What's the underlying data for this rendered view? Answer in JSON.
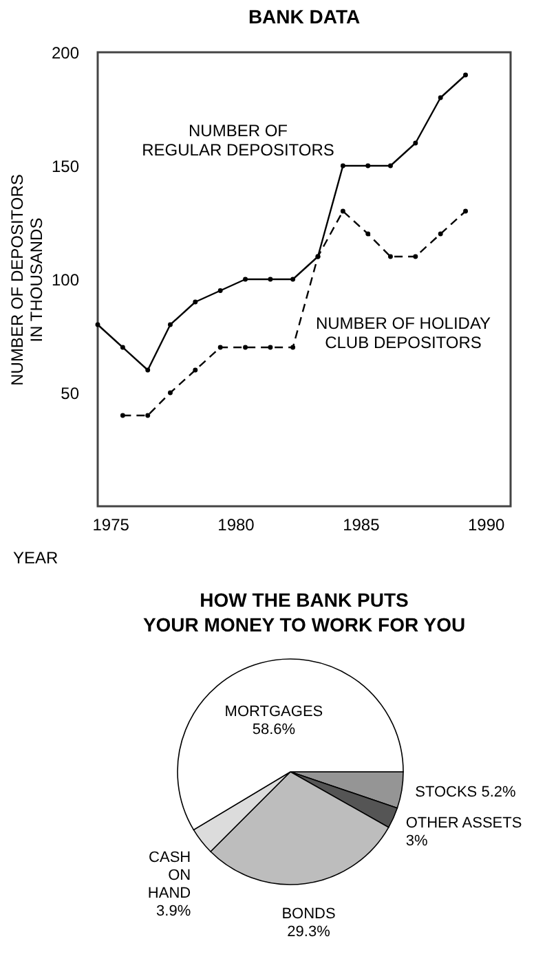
{
  "chart_data": [
    {
      "type": "line",
      "title": "BANK DATA",
      "xlabel": "YEAR",
      "ylabel": "NUMBER OF DEPOSITORS IN THOUSANDS",
      "xlim": [
        1974.5,
        1991
      ],
      "xticks": [
        1975,
        1980,
        1985,
        1990
      ],
      "ylim": [
        0,
        200
      ],
      "yticks": [
        50,
        100,
        150,
        200
      ],
      "grid": false,
      "series": [
        {
          "name": "NUMBER OF REGULAR DEPOSITORS",
          "color": "#000000",
          "line_style": "solid",
          "marker": "circle",
          "x": [
            1974.5,
            1975.5,
            1976.5,
            1977.4,
            1978.4,
            1979.4,
            1980.4,
            1981.4,
            1982.3,
            1983.3,
            1984.3,
            1985.3,
            1986.2,
            1987.2,
            1988.2,
            1989.2
          ],
          "values": [
            80,
            70,
            60,
            80,
            90,
            95,
            100,
            100,
            100,
            110,
            150,
            150,
            150,
            160,
            180,
            190
          ]
        },
        {
          "name": "NUMBER OF HOLIDAY CLUB DEPOSITORS",
          "color": "#000000",
          "line_style": "dashed",
          "marker": "circle",
          "x": [
            1975.5,
            1976.5,
            1977.4,
            1978.4,
            1979.4,
            1980.4,
            1981.4,
            1982.3,
            1983.3,
            1984.3,
            1985.3,
            1986.2,
            1987.2,
            1988.2,
            1989.2
          ],
          "values": [
            40,
            40,
            50,
            60,
            70,
            70,
            70,
            70,
            110,
            130,
            120,
            110,
            110,
            120,
            130
          ]
        }
      ]
    },
    {
      "type": "pie",
      "title": "HOW THE BANK PUTS YOUR MONEY TO WORK FOR YOU",
      "categories": [
        "STOCKS",
        "OTHER ASSETS",
        "BONDS",
        "CASH ON HAND",
        "MORTGAGES"
      ],
      "values": [
        5.2,
        3,
        29.3,
        3.9,
        58.6
      ],
      "colors": [
        "#959595",
        "#555555",
        "#bdbdbd",
        "#dcdcdc",
        "#ffffff"
      ],
      "value_labels": [
        "5.2%",
        "3%",
        "29.3%",
        "3.9%",
        "58.6%"
      ]
    }
  ]
}
